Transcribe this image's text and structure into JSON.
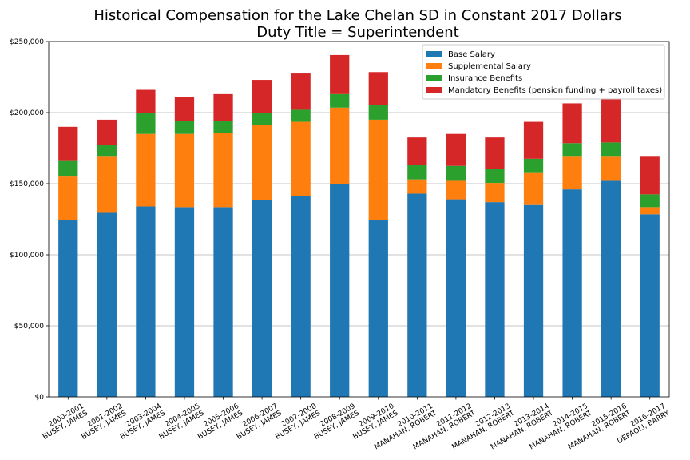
{
  "chart_data": {
    "type": "bar",
    "stacked": true,
    "title": "Historical Compensation for the Lake Chelan SD in Constant 2017 Dollars",
    "subtitle": "Duty Title = Superintendent",
    "xlabel": "",
    "ylabel": "",
    "ylim": [
      0,
      250000
    ],
    "yticks": [
      0,
      50000,
      100000,
      150000,
      200000,
      250000
    ],
    "ytick_labels": [
      "$0",
      "$50,000",
      "$100,000",
      "$150,000",
      "$200,000",
      "$250,000"
    ],
    "grid": "horizontal",
    "legend_position": "top-right",
    "categories": [
      [
        "2000-2001",
        "BUSEY, JAMES"
      ],
      [
        "2001-2002",
        "BUSEY, JAMES"
      ],
      [
        "2003-2004",
        "BUSEY, JAMES"
      ],
      [
        "2004-2005",
        "BUSEY, JAMES"
      ],
      [
        "2005-2006",
        "BUSEY, JAMES"
      ],
      [
        "2006-2007",
        "BUSEY, JAMES"
      ],
      [
        "2007-2008",
        "BUSEY, JAMES"
      ],
      [
        "2008-2009",
        "BUSEY, JAMES"
      ],
      [
        "2009-2010",
        "BUSEY, JAMES"
      ],
      [
        "2010-2011",
        "MANAHAN, ROBERT"
      ],
      [
        "2011-2012",
        "MANAHAN, ROBERT"
      ],
      [
        "2012-2013",
        "MANAHAN, ROBERT"
      ],
      [
        "2013-2014",
        "MANAHAN, ROBERT"
      ],
      [
        "2014-2015",
        "MANAHAN, ROBERT"
      ],
      [
        "2015-2016",
        "MANAHAN, ROBERT"
      ],
      [
        "2016-2017",
        "DEPAOLI, BARRY"
      ]
    ],
    "series": [
      {
        "name": "Base Salary",
        "color": "#1f77b4",
        "values": [
          124500,
          129500,
          134000,
          133500,
          133500,
          138500,
          141500,
          149500,
          124500,
          143000,
          139000,
          137000,
          135000,
          146000,
          152000,
          128500
        ]
      },
      {
        "name": "Supplemental Salary",
        "color": "#ff7f0e",
        "values": [
          30500,
          40000,
          51000,
          51500,
          52000,
          52500,
          52000,
          54000,
          70500,
          10000,
          13000,
          13500,
          22500,
          23500,
          17500,
          5000
        ]
      },
      {
        "name": "Insurance Benefits",
        "color": "#2ca02c",
        "values": [
          11500,
          8000,
          15000,
          9000,
          8500,
          8500,
          8500,
          9500,
          10500,
          10000,
          10500,
          10000,
          10000,
          9000,
          9500,
          9000
        ]
      },
      {
        "name": "Mandatory Benefits (pension funding + payroll taxes)",
        "color": "#d62728",
        "values": [
          23500,
          17500,
          16000,
          17000,
          19000,
          23500,
          25500,
          27500,
          23000,
          19500,
          22500,
          22000,
          26000,
          28000,
          31000,
          27000
        ]
      }
    ]
  }
}
